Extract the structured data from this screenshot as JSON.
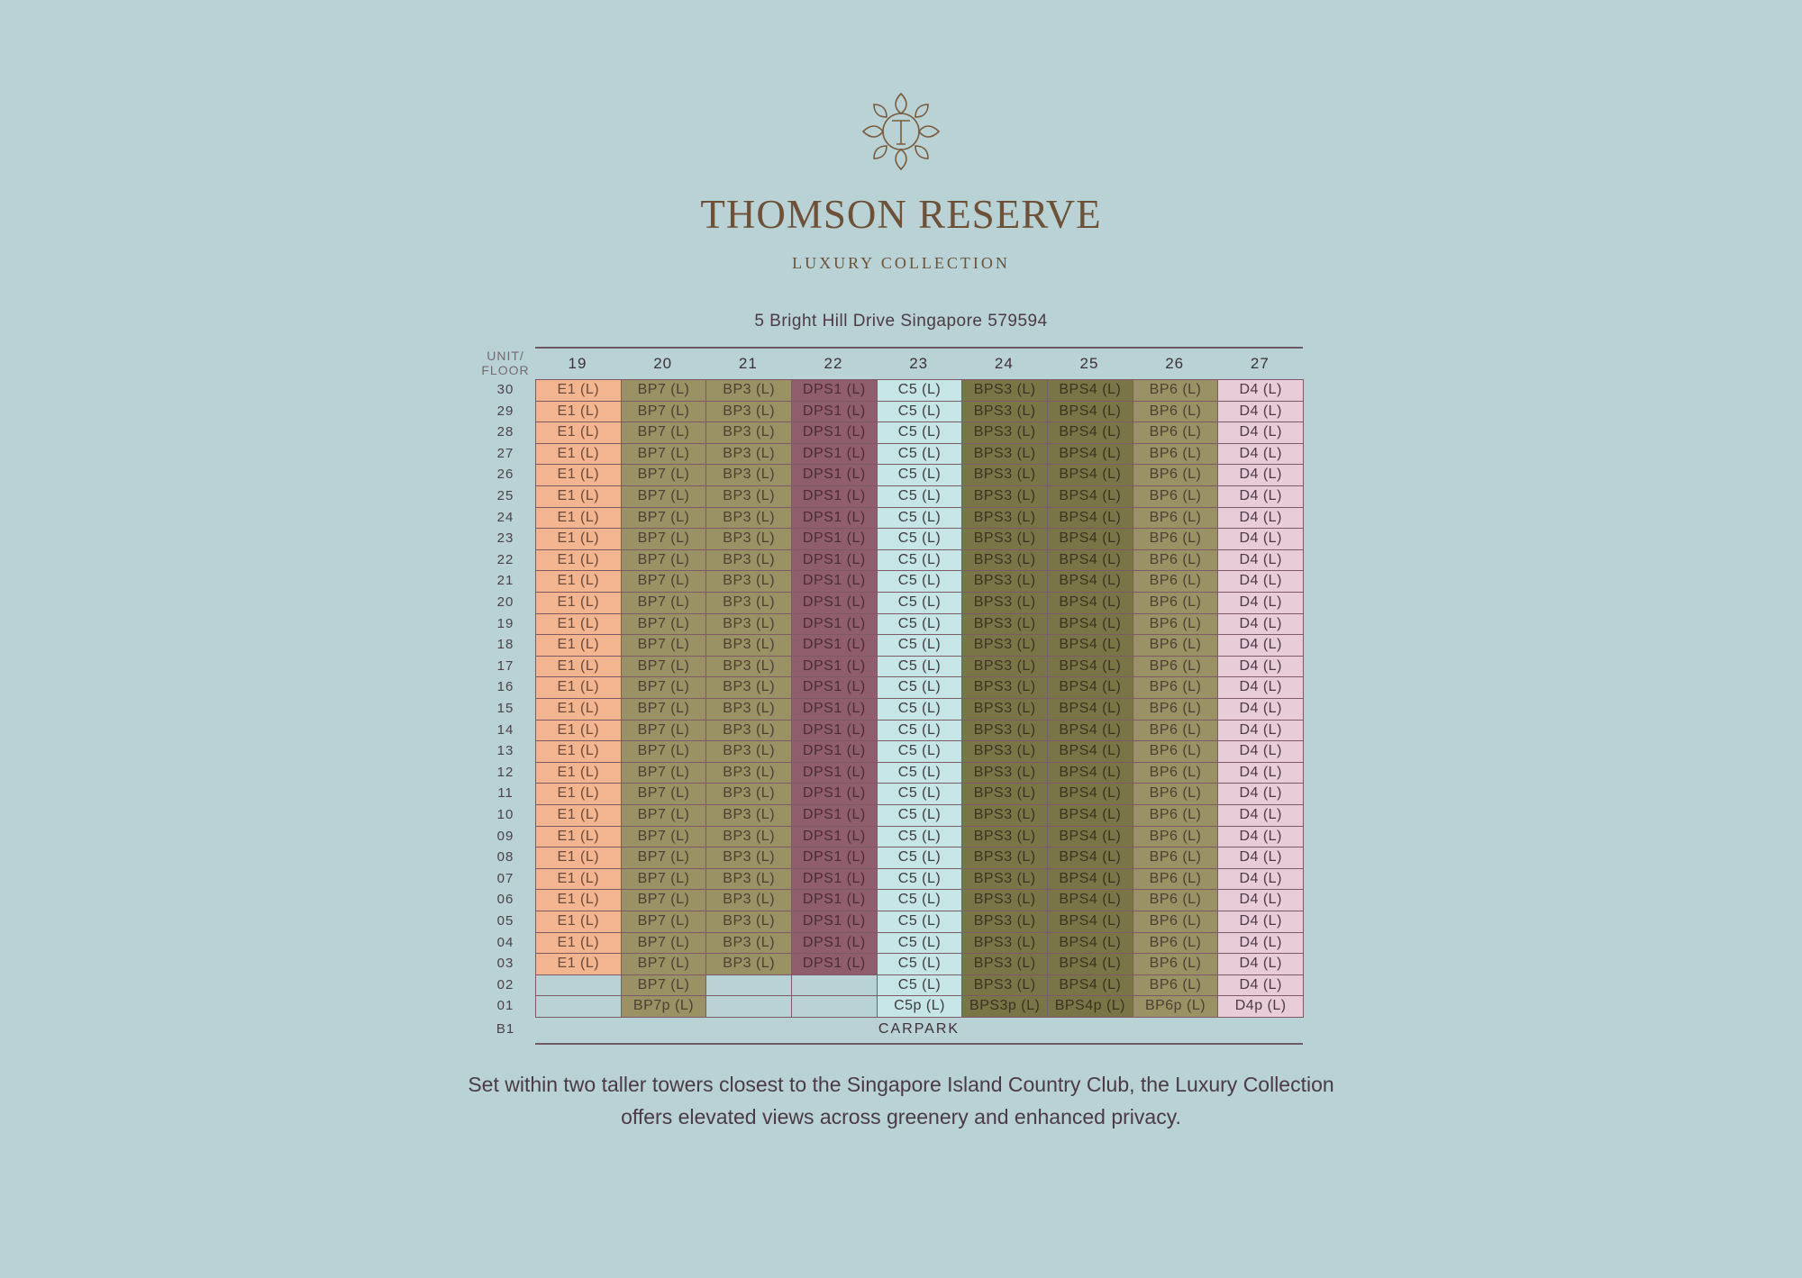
{
  "logo_icon": "thomson-reserve-leaf-monogram-icon",
  "brand": {
    "title": "THOMSON RESERVE",
    "subtitle": "LUXURY COLLECTION"
  },
  "address": "5 Bright Hill Drive Singapore 579594",
  "table": {
    "axis_label": [
      "UNIT/",
      "FLOOR"
    ],
    "columns": [
      {
        "unit": "19",
        "type": "E1 (L)",
        "penthouse": null,
        "bg": "#f3b58f",
        "fg": "#6a4a3c"
      },
      {
        "unit": "20",
        "type": "BP7 (L)",
        "penthouse": "BP7p (L)",
        "bg": "#9a9164",
        "fg": "#4e3f33"
      },
      {
        "unit": "21",
        "type": "BP3 (L)",
        "penthouse": null,
        "bg": "#9a9164",
        "fg": "#4e3f33"
      },
      {
        "unit": "22",
        "type": "DPS1 (L)",
        "penthouse": null,
        "bg": "#8f5d6b",
        "fg": "#4b2d37"
      },
      {
        "unit": "23",
        "type": "C5 (L)",
        "penthouse": "C5p (L)",
        "bg": "#c5e5e6",
        "fg": "#3f3a3f"
      },
      {
        "unit": "24",
        "type": "BPS3 (L)",
        "penthouse": "BPS3p (L)",
        "bg": "#7a7547",
        "fg": "#3d3222"
      },
      {
        "unit": "25",
        "type": "BPS4 (L)",
        "penthouse": "BPS4p (L)",
        "bg": "#7a7547",
        "fg": "#3d3222"
      },
      {
        "unit": "26",
        "type": "BP6 (L)",
        "penthouse": "BP6p (L)",
        "bg": "#9a9164",
        "fg": "#4e3f33"
      },
      {
        "unit": "27",
        "type": "D4 (L)",
        "penthouse": "D4p (L)",
        "bg": "#e8cdd8",
        "fg": "#4b3a44"
      }
    ],
    "floors": [
      "30",
      "29",
      "28",
      "27",
      "26",
      "25",
      "24",
      "23",
      "22",
      "21",
      "20",
      "19",
      "18",
      "17",
      "16",
      "15",
      "14",
      "13",
      "12",
      "11",
      "10",
      "09",
      "08",
      "07",
      "06",
      "05",
      "04",
      "03"
    ],
    "floor_02": {
      "label": "02",
      "units_present": [
        "20",
        "23",
        "24",
        "25",
        "26",
        "27"
      ]
    },
    "floor_01": {
      "label": "01"
    },
    "basement": {
      "label": "B1",
      "text": "CARPARK"
    }
  },
  "caption": [
    "Set within two taller towers closest to the Singapore Island Country Club, the Luxury Collection",
    "offers elevated views across greenery and enhanced privacy."
  ]
}
